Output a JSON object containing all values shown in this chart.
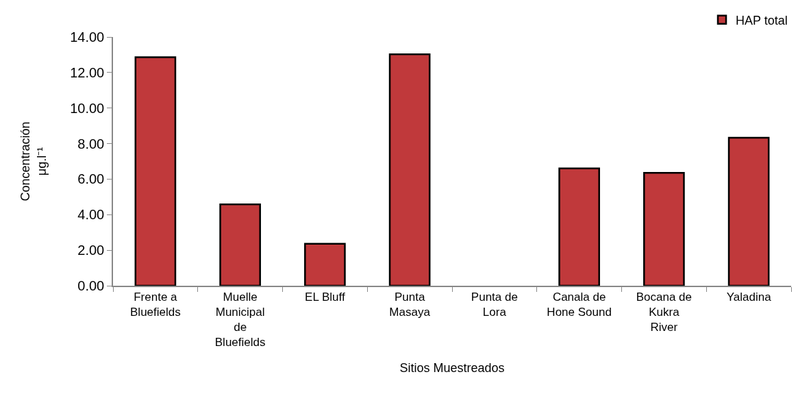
{
  "chart_data": {
    "type": "bar",
    "xlabel": "Sitios Muestreados",
    "ylabel": "Concentración\nμg.l⁻¹",
    "categories": [
      "Frente a Bluefields",
      "Muelle Municipal de Bluefields",
      "EL Bluff",
      "Punta Masaya",
      "Punta de Lora",
      "Canala de Hone Sound",
      "Bocana de Kukra River",
      "Yaladina"
    ],
    "series": [
      {
        "name": "HAP total",
        "color": "#c0393b",
        "values": [
          12.86,
          4.58,
          2.36,
          13.03,
          0,
          6.6,
          6.35,
          8.33
        ]
      }
    ],
    "ylim": [
      0,
      14
    ],
    "yticks": [
      {
        "value": 0,
        "label": "0.00"
      },
      {
        "value": 2,
        "label": "2.00"
      },
      {
        "value": 4,
        "label": "4.00"
      },
      {
        "value": 6,
        "label": "6.00"
      },
      {
        "value": 8,
        "label": "8.00"
      },
      {
        "value": 10,
        "label": "10.00"
      },
      {
        "value": 12,
        "label": "12.00"
      },
      {
        "value": 14,
        "label": "14.00"
      }
    ],
    "grid": false,
    "legend": "top right"
  }
}
